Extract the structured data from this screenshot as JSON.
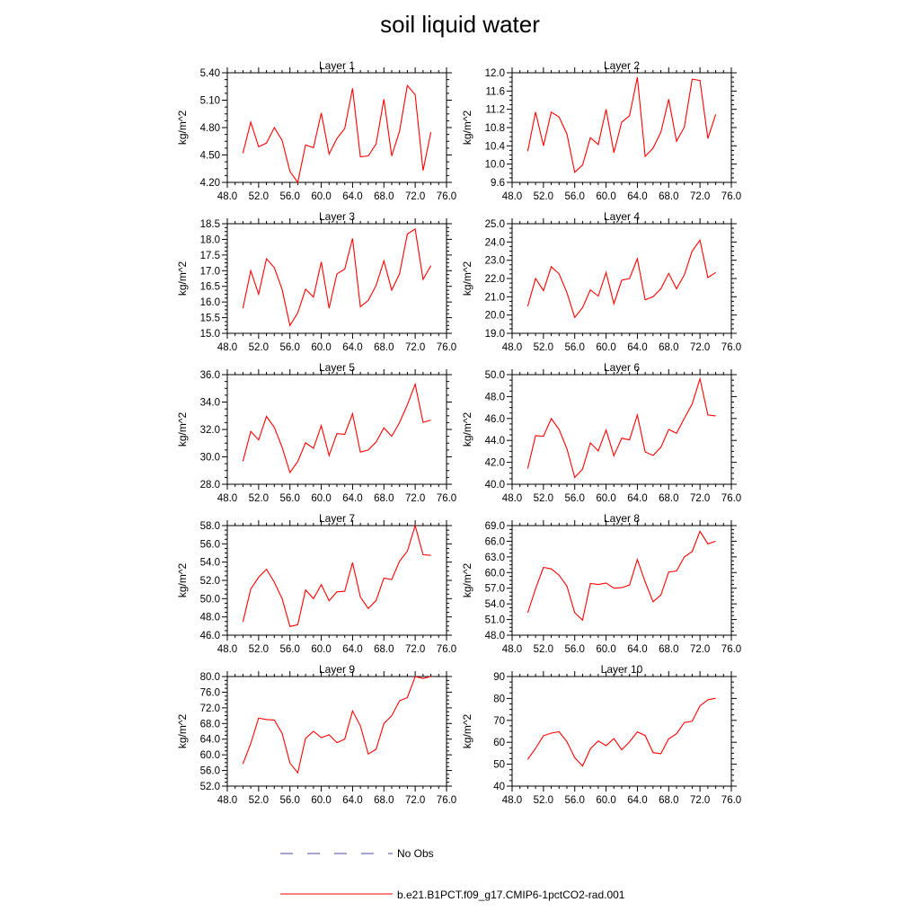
{
  "page": {
    "title": "soil liquid water",
    "legend": [
      {
        "label": "No Obs",
        "color": "#4a4aa0",
        "style": "dashed"
      },
      {
        "label": "b.e21.B1PCT.f09_g17.CMIP6-1pctCO2-rad.001",
        "color": "#ff0000",
        "style": "solid"
      }
    ]
  },
  "chart_data": [
    {
      "type": "line",
      "title": "Layer 1",
      "ylabel": "kg/m^2",
      "xlim": [
        48,
        76
      ],
      "ylim": [
        4.2,
        5.4
      ],
      "xticks": [
        "48.0",
        "52.0",
        "56.0",
        "60.0",
        "64.0",
        "68.0",
        "72.0",
        "76.0"
      ],
      "yticks": [
        "4.20",
        "4.50",
        "4.80",
        "5.10",
        "5.40"
      ],
      "series": [
        {
          "color": "#ff0000",
          "x": [
            50,
            51,
            52,
            53,
            54,
            55,
            56,
            57,
            58,
            59,
            60,
            61,
            62,
            63,
            64,
            65,
            66,
            67,
            68,
            69,
            70,
            71,
            72,
            73,
            74
          ],
          "y": [
            4.52,
            4.86,
            4.59,
            4.63,
            4.8,
            4.66,
            4.32,
            4.2,
            4.61,
            4.58,
            4.96,
            4.51,
            4.68,
            4.79,
            5.23,
            4.48,
            4.49,
            4.62,
            5.11,
            4.49,
            4.76,
            5.26,
            5.16,
            4.33,
            4.75
          ]
        }
      ]
    },
    {
      "type": "line",
      "title": "Layer 2",
      "ylabel": "kg/m^2",
      "xlim": [
        48,
        76
      ],
      "ylim": [
        9.6,
        12.0
      ],
      "xticks": [
        "48.0",
        "52.0",
        "56.0",
        "60.0",
        "64.0",
        "68.0",
        "72.0",
        "76.0"
      ],
      "yticks": [
        "9.6",
        "10.0",
        "10.4",
        "10.8",
        "11.2",
        "11.6",
        "12.0"
      ],
      "series": [
        {
          "color": "#ff0000",
          "x": [
            50,
            51,
            52,
            53,
            54,
            55,
            56,
            57,
            58,
            59,
            60,
            61,
            62,
            63,
            64,
            65,
            66,
            67,
            68,
            69,
            70,
            71,
            72,
            73,
            74
          ],
          "y": [
            10.28,
            11.14,
            10.4,
            11.14,
            11.03,
            10.66,
            9.82,
            9.98,
            10.58,
            10.43,
            11.2,
            10.25,
            10.92,
            11.06,
            11.9,
            10.17,
            10.35,
            10.7,
            11.42,
            10.5,
            10.81,
            11.86,
            11.83,
            10.56,
            11.09
          ]
        }
      ]
    },
    {
      "type": "line",
      "title": "Layer 3",
      "ylabel": "kg/m^2",
      "xlim": [
        48,
        76
      ],
      "ylim": [
        15.0,
        18.5
      ],
      "xticks": [
        "48.0",
        "52.0",
        "56.0",
        "60.0",
        "64.0",
        "68.0",
        "72.0",
        "76.0"
      ],
      "yticks": [
        "15.0",
        "15.5",
        "16.0",
        "16.5",
        "17.0",
        "17.5",
        "18.0",
        "18.5"
      ],
      "series": [
        {
          "color": "#ff0000",
          "x": [
            50,
            51,
            52,
            53,
            54,
            55,
            56,
            57,
            58,
            59,
            60,
            61,
            62,
            63,
            64,
            65,
            66,
            67,
            68,
            69,
            70,
            71,
            72,
            73,
            74
          ],
          "y": [
            15.8,
            17.0,
            16.25,
            17.38,
            17.1,
            16.4,
            15.25,
            15.65,
            16.41,
            16.16,
            17.28,
            15.8,
            16.9,
            17.05,
            18.03,
            15.85,
            16.05,
            16.53,
            17.31,
            16.38,
            16.9,
            18.17,
            18.33,
            16.72,
            17.16
          ]
        }
      ]
    },
    {
      "type": "line",
      "title": "Layer 4",
      "ylabel": "kg/m^2",
      "xlim": [
        48,
        76
      ],
      "ylim": [
        19.0,
        25.0
      ],
      "xticks": [
        "48.0",
        "52.0",
        "56.0",
        "60.0",
        "64.0",
        "68.0",
        "72.0",
        "76.0"
      ],
      "yticks": [
        "19.0",
        "20.0",
        "21.0",
        "22.0",
        "23.0",
        "24.0",
        "25.0"
      ],
      "series": [
        {
          "color": "#ff0000",
          "x": [
            50,
            51,
            52,
            53,
            54,
            55,
            56,
            57,
            58,
            59,
            60,
            61,
            62,
            63,
            64,
            65,
            66,
            67,
            68,
            69,
            70,
            71,
            72,
            73,
            74
          ],
          "y": [
            20.48,
            22.0,
            21.33,
            22.65,
            22.25,
            21.23,
            19.87,
            20.4,
            21.38,
            21.04,
            22.33,
            20.62,
            21.91,
            22.0,
            23.08,
            20.83,
            21.0,
            21.44,
            22.28,
            21.44,
            22.2,
            23.5,
            24.1,
            22.05,
            22.33
          ]
        }
      ]
    },
    {
      "type": "line",
      "title": "Layer 5",
      "ylabel": "kg/m^2",
      "xlim": [
        48,
        76
      ],
      "ylim": [
        28.0,
        36.0
      ],
      "xticks": [
        "48.0",
        "52.0",
        "56.0",
        "60.0",
        "64.0",
        "68.0",
        "72.0",
        "76.0"
      ],
      "yticks": [
        "28.0",
        "30.0",
        "32.0",
        "34.0",
        "36.0"
      ],
      "series": [
        {
          "color": "#ff0000",
          "x": [
            50,
            51,
            52,
            53,
            54,
            55,
            56,
            57,
            58,
            59,
            60,
            61,
            62,
            63,
            64,
            65,
            66,
            67,
            68,
            69,
            70,
            71,
            72,
            73,
            74
          ],
          "y": [
            29.68,
            31.86,
            31.24,
            32.95,
            32.15,
            30.7,
            28.86,
            29.66,
            31.02,
            30.62,
            32.28,
            30.1,
            31.7,
            31.64,
            33.15,
            30.35,
            30.5,
            31.08,
            32.12,
            31.5,
            32.5,
            33.8,
            35.3,
            32.52,
            32.68
          ]
        }
      ]
    },
    {
      "type": "line",
      "title": "Layer 6",
      "ylabel": "kg/m^2",
      "xlim": [
        48,
        76
      ],
      "ylim": [
        40.0,
        50.0
      ],
      "xticks": [
        "48.0",
        "52.0",
        "56.0",
        "60.0",
        "64.0",
        "68.0",
        "72.0",
        "76.0"
      ],
      "yticks": [
        "40.0",
        "42.0",
        "44.0",
        "46.0",
        "48.0",
        "50.0"
      ],
      "series": [
        {
          "color": "#ff0000",
          "x": [
            50,
            51,
            52,
            53,
            54,
            55,
            56,
            57,
            58,
            59,
            60,
            61,
            62,
            63,
            64,
            65,
            66,
            67,
            68,
            69,
            70,
            71,
            72,
            73,
            74
          ],
          "y": [
            41.44,
            44.43,
            44.38,
            45.99,
            45.0,
            43.24,
            40.62,
            41.38,
            43.78,
            43.04,
            44.95,
            42.6,
            44.2,
            44.05,
            46.32,
            42.95,
            42.62,
            43.38,
            45.0,
            44.65,
            46.02,
            47.32,
            49.62,
            46.32,
            46.24
          ]
        }
      ]
    },
    {
      "type": "line",
      "title": "Layer 7",
      "ylabel": "kg/m^2",
      "xlim": [
        48,
        76
      ],
      "ylim": [
        46.0,
        58.0
      ],
      "xticks": [
        "48.0",
        "52.0",
        "56.0",
        "60.0",
        "64.0",
        "68.0",
        "72.0",
        "76.0"
      ],
      "yticks": [
        "46.0",
        "48.0",
        "50.0",
        "52.0",
        "54.0",
        "56.0",
        "58.0"
      ],
      "series": [
        {
          "color": "#ff0000",
          "x": [
            50,
            51,
            52,
            53,
            54,
            55,
            56,
            57,
            58,
            59,
            60,
            61,
            62,
            63,
            64,
            65,
            66,
            67,
            68,
            69,
            70,
            71,
            72,
            73,
            74
          ],
          "y": [
            47.45,
            51.06,
            52.35,
            53.22,
            51.8,
            50.0,
            46.95,
            47.14,
            50.95,
            50.0,
            51.54,
            49.78,
            50.75,
            50.8,
            53.95,
            50.18,
            48.92,
            49.8,
            52.25,
            52.1,
            54.1,
            55.2,
            58.0,
            54.8,
            54.74
          ]
        }
      ]
    },
    {
      "type": "line",
      "title": "Layer 8",
      "ylabel": "kg/m^2",
      "xlim": [
        48,
        76
      ],
      "ylim": [
        48.0,
        69.0
      ],
      "xticks": [
        "48.0",
        "52.0",
        "56.0",
        "60.0",
        "64.0",
        "68.0",
        "72.0",
        "76.0"
      ],
      "yticks": [
        "48.0",
        "51.0",
        "54.0",
        "57.0",
        "60.0",
        "63.0",
        "66.0",
        "69.0"
      ],
      "series": [
        {
          "color": "#ff0000",
          "x": [
            50,
            51,
            52,
            53,
            54,
            55,
            56,
            57,
            58,
            59,
            60,
            61,
            62,
            63,
            64,
            65,
            66,
            67,
            68,
            69,
            70,
            71,
            72,
            73,
            74
          ],
          "y": [
            52.3,
            56.9,
            61.0,
            60.7,
            59.5,
            57.4,
            52.3,
            50.9,
            57.9,
            57.7,
            58.0,
            57.0,
            57.1,
            57.6,
            62.5,
            58.2,
            54.4,
            55.7,
            60.1,
            60.3,
            63.0,
            64.0,
            67.9,
            65.5,
            66.0
          ]
        }
      ]
    },
    {
      "type": "line",
      "title": "Layer 9",
      "ylabel": "kg/m^2",
      "xlim": [
        48,
        76
      ],
      "ylim": [
        52.0,
        80.0
      ],
      "xticks": [
        "48.0",
        "52.0",
        "56.0",
        "60.0",
        "64.0",
        "68.0",
        "72.0",
        "76.0"
      ],
      "yticks": [
        "52.0",
        "56.0",
        "60.0",
        "64.0",
        "68.0",
        "72.0",
        "76.0",
        "80.0"
      ],
      "series": [
        {
          "color": "#ff0000",
          "x": [
            50,
            51,
            52,
            53,
            54,
            55,
            56,
            57,
            58,
            59,
            60,
            61,
            62,
            63,
            64,
            65,
            66,
            67,
            68,
            69,
            70,
            71,
            72,
            73,
            74
          ],
          "y": [
            57.7,
            62.9,
            69.4,
            69.0,
            68.9,
            65.5,
            57.9,
            55.4,
            64.2,
            66.0,
            64.4,
            65.1,
            63.1,
            64.0,
            71.2,
            67.4,
            60.2,
            61.4,
            68.0,
            70.0,
            73.8,
            74.6,
            80.0,
            79.5,
            80.0
          ]
        }
      ]
    },
    {
      "type": "line",
      "title": "Layer 10",
      "ylabel": "kg/m^2",
      "xlim": [
        48,
        76
      ],
      "ylim": [
        40,
        90
      ],
      "xticks": [
        "48.0",
        "52.0",
        "56.0",
        "60.0",
        "64.0",
        "68.0",
        "72.0",
        "76.0"
      ],
      "yticks": [
        "40",
        "50",
        "60",
        "70",
        "80",
        "90"
      ],
      "series": [
        {
          "color": "#ff0000",
          "x": [
            50,
            51,
            52,
            53,
            54,
            55,
            56,
            57,
            58,
            59,
            60,
            61,
            62,
            63,
            64,
            65,
            66,
            67,
            68,
            69,
            70,
            71,
            72,
            73,
            74
          ],
          "y": [
            52.2,
            57.2,
            63.0,
            64.2,
            64.8,
            60.3,
            53.0,
            49.2,
            57.0,
            60.6,
            58.5,
            61.7,
            56.6,
            60.2,
            64.7,
            63.1,
            55.3,
            54.8,
            61.6,
            63.9,
            69.0,
            69.6,
            76.6,
            79.4,
            80.1
          ]
        }
      ]
    }
  ]
}
